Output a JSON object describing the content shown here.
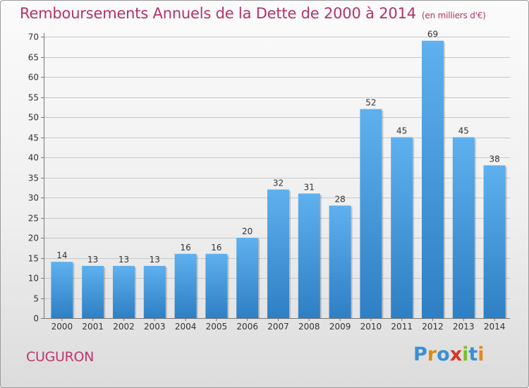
{
  "title": "Remboursements Annuels de la Dette de 2000 à 2014",
  "subtitle": "(en milliers d'€)",
  "town": "CUGURON",
  "logo": {
    "text": "Proxiti",
    "letters": [
      {
        "ch": "P",
        "color": "#3a8fd6"
      },
      {
        "ch": "r",
        "color": "#e08a1e"
      },
      {
        "ch": "o",
        "color": "#3a8fd6"
      },
      {
        "ch": "x",
        "color": "#d8352a"
      },
      {
        "ch": "i",
        "color": "#7cbf2a"
      },
      {
        "ch": "t",
        "color": "#3a8fd6"
      },
      {
        "ch": "i",
        "color": "#e08a1e"
      }
    ]
  },
  "colors": {
    "bar_light": "#5eb0ee",
    "bar_dark": "#2e7fc4",
    "title": "#b0336b"
  },
  "chart_data": {
    "type": "bar",
    "title": "Remboursements Annuels de la Dette de 2000 à 2014",
    "ylabel": "en milliers d'€",
    "xlabel": "",
    "categories": [
      "2000",
      "2001",
      "2002",
      "2003",
      "2004",
      "2005",
      "2006",
      "2007",
      "2008",
      "2009",
      "2010",
      "2011",
      "2012",
      "2013",
      "2014"
    ],
    "values": [
      14,
      13,
      13,
      13,
      16,
      16,
      20,
      32,
      31,
      28,
      52,
      45,
      69,
      45,
      38
    ],
    "ylim": [
      0,
      70
    ],
    "yticks": [
      0,
      5,
      10,
      15,
      20,
      25,
      30,
      35,
      40,
      45,
      50,
      55,
      60,
      65,
      70
    ],
    "grid": true
  }
}
